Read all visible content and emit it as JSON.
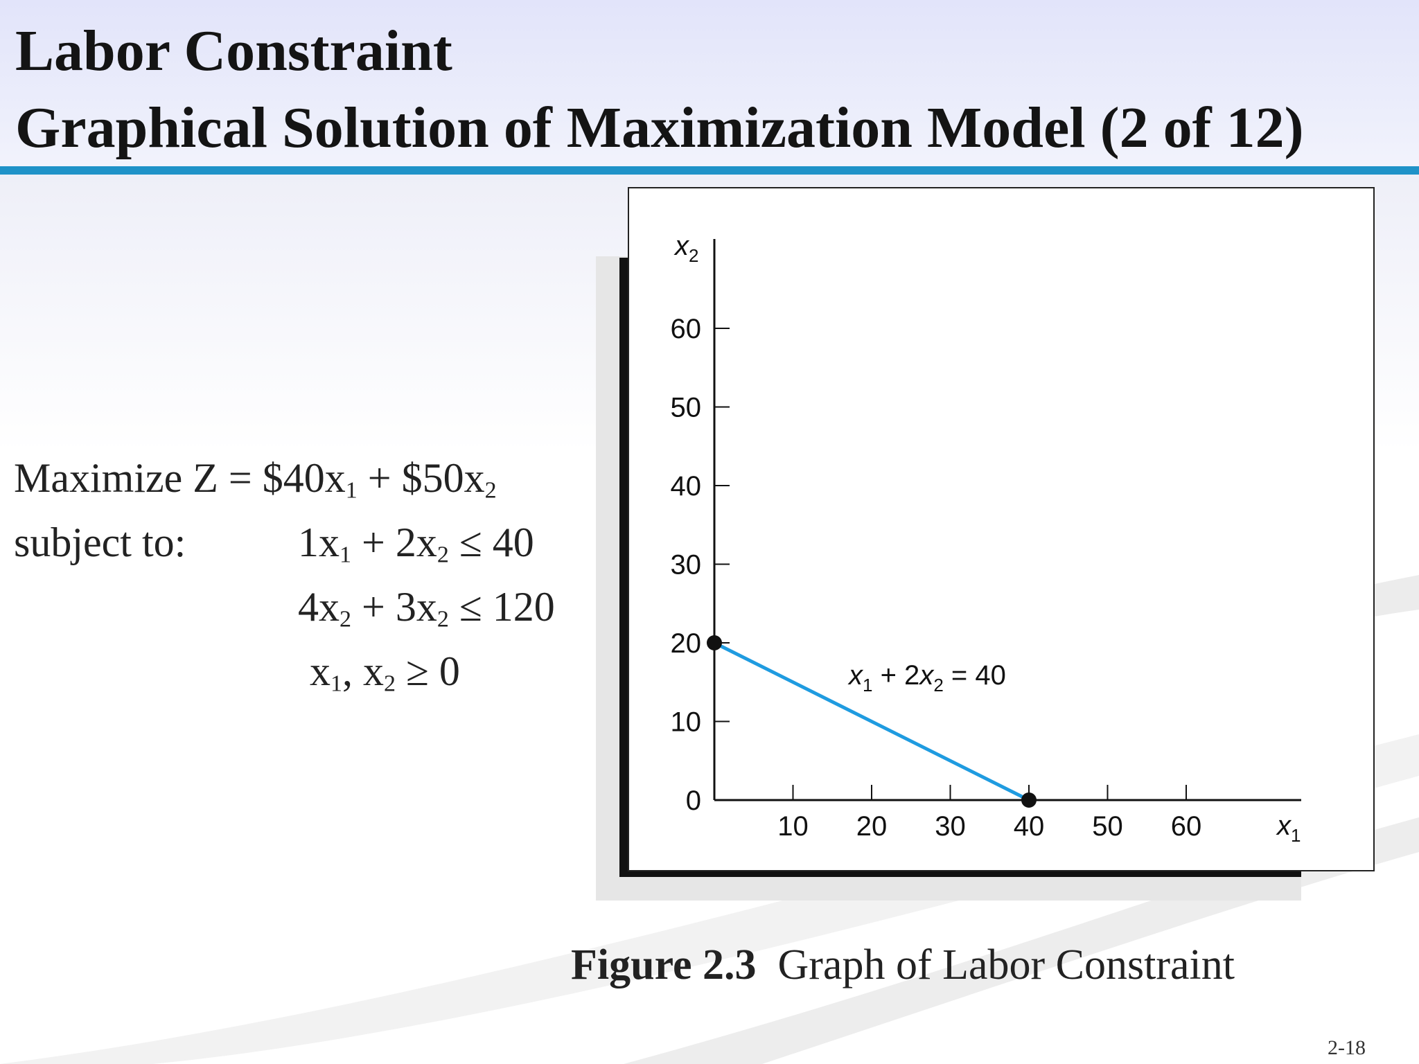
{
  "slide": {
    "title_line_1": "Labor Constraint",
    "title_line_2": "Graphical Solution of Maximization Model (2 of 12)",
    "page_number": "2-18",
    "accent_color": "#1f92c8"
  },
  "model": {
    "objective": {
      "prefix": "Maximize Z = $40x",
      "s1": "1",
      "mid": " + $50x",
      "s2": "2"
    },
    "subject_to_label": "subject to:",
    "constraint_1": {
      "a": "1x",
      "s1": "1",
      "b": " + 2x",
      "s2": "2",
      "c": " ≤ 40"
    },
    "constraint_2": {
      "a": "4x",
      "s1": "2",
      "b": " + 3x",
      "s2": "2",
      "c": " ≤ 120"
    },
    "constraint_3": {
      "a": "x",
      "s1": "1",
      "b": ", x",
      "s2": "2",
      "c": " ≥ 0"
    }
  },
  "figure": {
    "number": "Figure 2.3",
    "title": "Graph of Labor Constraint"
  },
  "chart_data": {
    "type": "line",
    "xlim": [
      0,
      70
    ],
    "ylim": [
      0,
      70
    ],
    "x_ticks": [
      10,
      20,
      30,
      40,
      50,
      60
    ],
    "y_ticks": [
      0,
      10,
      20,
      30,
      40,
      50,
      60
    ],
    "x_axis_label": {
      "base": "x",
      "sub": "1"
    },
    "y_axis_label": {
      "base": "x",
      "sub": "2"
    },
    "series": [
      {
        "points": [
          [
            0,
            20
          ],
          [
            40,
            0
          ]
        ],
        "color": "#1f9be0"
      }
    ],
    "endpoints": [
      [
        0,
        20
      ],
      [
        40,
        0
      ]
    ],
    "line_label": {
      "p1": "x",
      "s1": "1",
      "p2": " + 2",
      "p3": "x",
      "s2": "2",
      "p4": " = 40"
    },
    "grid": false
  }
}
